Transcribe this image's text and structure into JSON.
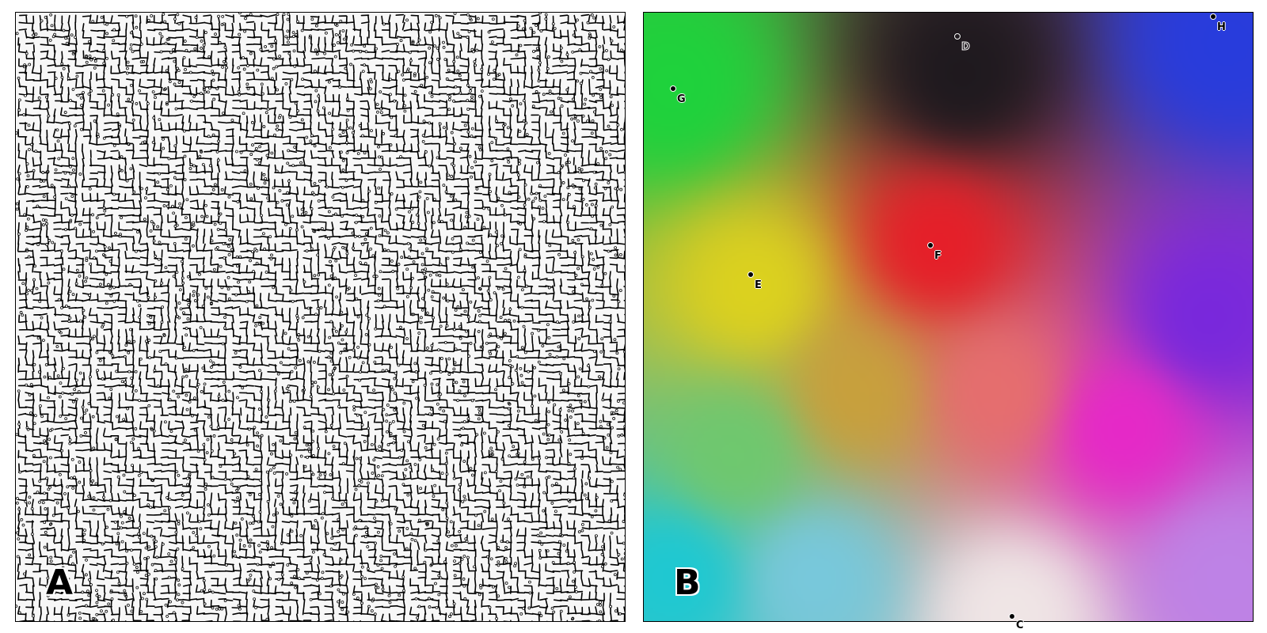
{
  "panels": [
    {
      "label": "A"
    },
    {
      "label": "B"
    }
  ],
  "markers": [
    {
      "label": "G"
    },
    {
      "label": "D"
    },
    {
      "label": "H"
    },
    {
      "label": "F"
    },
    {
      "label": "E"
    },
    {
      "label": "C"
    }
  ],
  "colors": {
    "maze_line": "#000000",
    "maze_background": "#f7f7f7",
    "field_gradient_stops": [
      "#1fd43a",
      "#c94a2a",
      "#e5182f",
      "#2a3ad6",
      "#e7e01a",
      "#1fd4c8",
      "#e07ad6",
      "#1e1a2a"
    ]
  }
}
